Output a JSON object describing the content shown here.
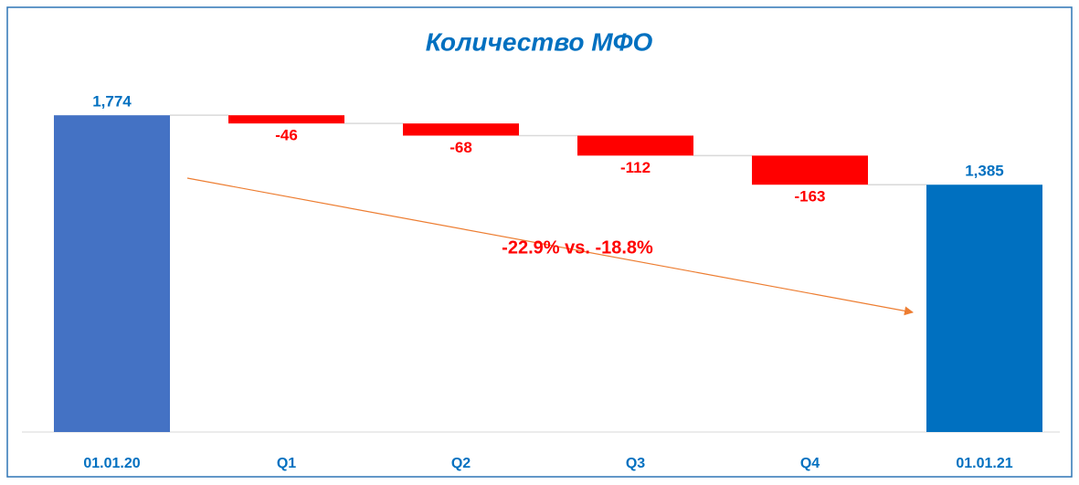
{
  "chart_data": {
    "type": "waterfall",
    "title": "Количество МФО",
    "categories": [
      "01.01.20",
      "Q1",
      "Q2",
      "Q3",
      "Q4",
      "01.01.21"
    ],
    "values": [
      1774,
      -46,
      -68,
      -112,
      -163,
      1385
    ],
    "value_labels": [
      "1,774",
      "-46",
      "-68",
      "-112",
      "-163",
      "1,385"
    ],
    "measure": [
      "absolute",
      "relative",
      "relative",
      "relative",
      "relative",
      "absolute"
    ],
    "colors": [
      "#4472c4",
      "#ff0000",
      "#ff0000",
      "#ff0000",
      "#ff0000",
      "#0070c0"
    ],
    "ylim": [
      0,
      2000
    ],
    "annotation": "-22.9% vs. -18.8%"
  }
}
